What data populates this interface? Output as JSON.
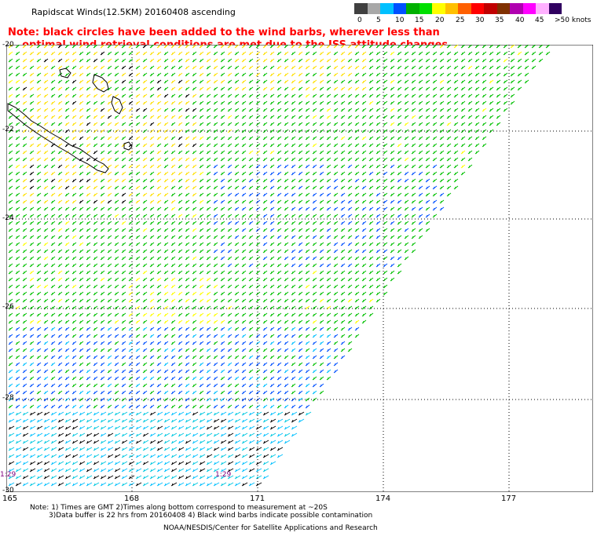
{
  "header": {
    "title": "Rapidscat Winds(12.5KM) 20160408 ascending",
    "note": "Note: black circles have been added to the wind barbs, wherever less than\n    optimal wind retrieval conditions are met due to the ISS attitude changes."
  },
  "colorbar": {
    "colors": [
      "#404040",
      "#a8a8a8",
      "#00c0ff",
      "#0050ff",
      "#00b000",
      "#00e000",
      "#ffff00",
      "#ffc000",
      "#ff6000",
      "#ff0000",
      "#c00000",
      "#803000",
      "#b000b0",
      "#ff00ff",
      "#ffb0ff",
      "#300060"
    ],
    "labels": [
      "0",
      "5",
      "10",
      "15",
      "20",
      "25",
      "30",
      "35",
      "40",
      "45",
      ">50 knots"
    ]
  },
  "map": {
    "lat_labels": [
      "-20",
      "-22",
      "-24",
      "-26",
      "-28",
      "-30"
    ],
    "lon_labels": [
      "165",
      "168",
      "171",
      "174",
      "177"
    ],
    "time_labels": [
      "1:29",
      "1:29"
    ]
  },
  "footer": {
    "note_line1": "Note: 1) Times are GMT 2)Times along bottom correspond to measurement at ~20S",
    "note_line2": "3)Data buffer is 22 hrs from 20160408 4) Black wind barbs indicate possible contamination",
    "credit": "NOAA/NESDIS/Center for Satellite Applications and Research"
  }
}
